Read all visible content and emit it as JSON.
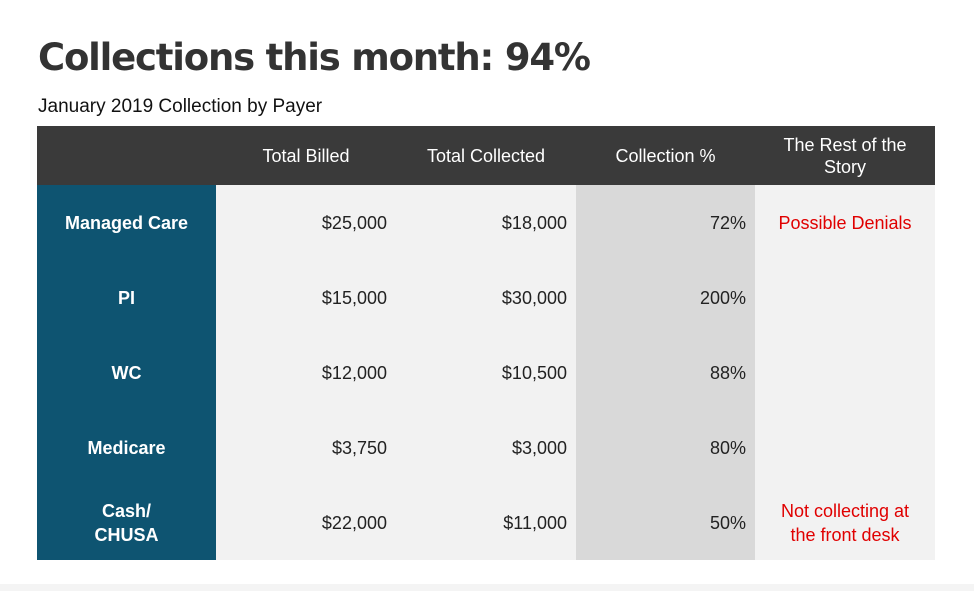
{
  "title": "Collections this month: 94%",
  "subtitle": "January 2019 Collection by Payer",
  "table": {
    "headers": [
      "",
      "Total Billed",
      "Total Collected",
      "Collection %",
      "The Rest of the Story"
    ],
    "rows": [
      {
        "payer": "Managed Care",
        "billed": "$25,000",
        "collected": "$18,000",
        "pct": "72%",
        "note": "Possible Denials"
      },
      {
        "payer": "PI",
        "billed": "$15,000",
        "collected": "$30,000",
        "pct": "200%",
        "note": ""
      },
      {
        "payer": "WC",
        "billed": "$12,000",
        "collected": "$10,500",
        "pct": "88%",
        "note": ""
      },
      {
        "payer": "Medicare",
        "billed": "$3,750",
        "collected": "$3,000",
        "pct": "80%",
        "note": ""
      },
      {
        "payer": "Cash/ CHUSA",
        "billed": "$22,000",
        "collected": "$11,000",
        "pct": "50%",
        "note": "Not collecting at the front desk"
      }
    ]
  },
  "colors": {
    "header_bg": "#3a3a3a",
    "payer_bg": "#0e5471",
    "cell_bg": "#f2f2f2",
    "pct_bg": "#d9d9d9",
    "note_text": "#e00000"
  }
}
